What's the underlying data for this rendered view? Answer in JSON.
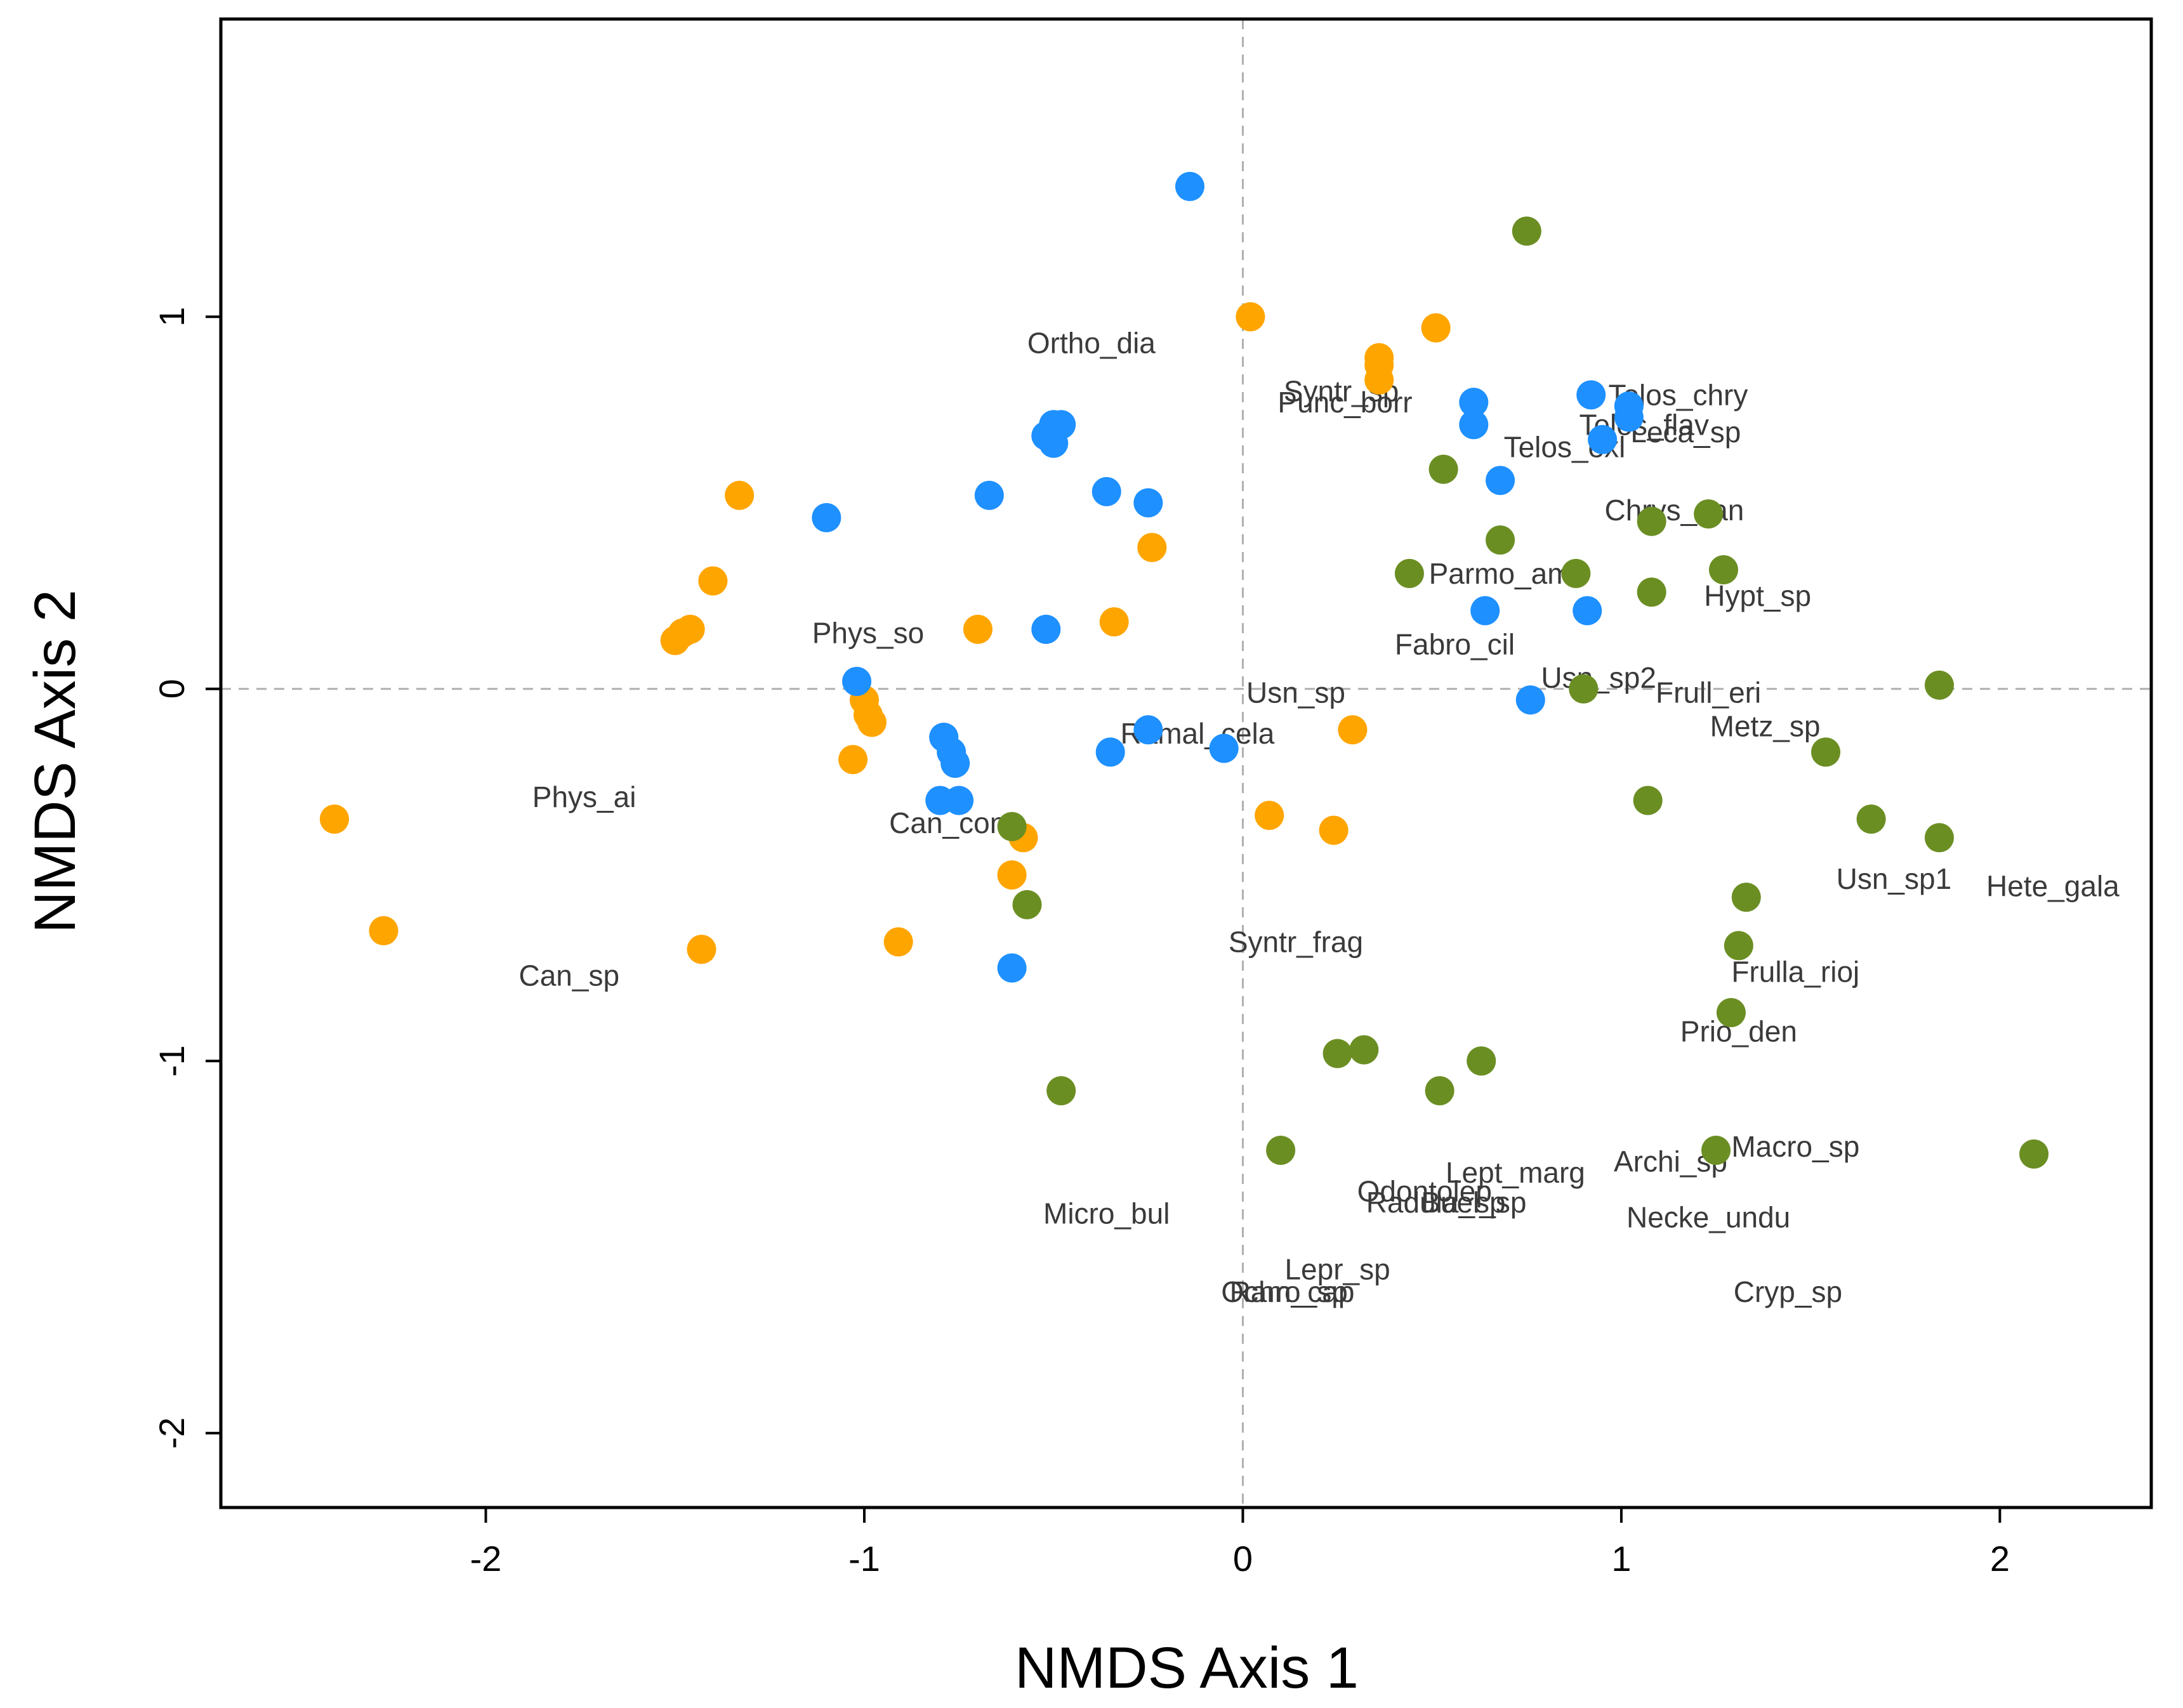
{
  "chart_data": {
    "type": "scatter",
    "title": "",
    "xlabel": "NMDS Axis 1",
    "ylabel": "NMDS Axis 2",
    "xlim": [
      -2.7,
      2.4
    ],
    "ylim": [
      -2.2,
      1.8
    ],
    "xticks": [
      -2,
      -1,
      0,
      1,
      2
    ],
    "yticks": [
      -2,
      -1,
      0,
      1
    ],
    "reference_lines": {
      "x": 0,
      "y": 0,
      "style": "dashed"
    },
    "colors": {
      "orange": "#FFA500",
      "blue": "#1E90FF",
      "green": "#6B8E23",
      "label": "#3a3a3a"
    },
    "series": [
      {
        "name": "orange",
        "color": "#FFA500",
        "points": [
          [
            -2.4,
            -0.35
          ],
          [
            -2.27,
            -0.65
          ],
          [
            -1.5,
            0.13
          ],
          [
            -1.48,
            0.15
          ],
          [
            -1.46,
            0.16
          ],
          [
            -1.4,
            0.29
          ],
          [
            -1.33,
            0.52
          ],
          [
            -1.43,
            -0.7
          ],
          [
            -1.03,
            -0.19
          ],
          [
            -1.0,
            -0.03
          ],
          [
            -0.99,
            -0.07
          ],
          [
            -0.98,
            -0.09
          ],
          [
            -0.91,
            -0.68
          ],
          [
            -0.7,
            0.16
          ],
          [
            -0.61,
            -0.5
          ],
          [
            -0.58,
            -0.4
          ],
          [
            -0.34,
            0.18
          ],
          [
            -0.24,
            0.38
          ],
          [
            0.02,
            1.0
          ],
          [
            0.36,
            0.83
          ],
          [
            0.36,
            0.87
          ],
          [
            0.36,
            0.89
          ],
          [
            0.51,
            0.97
          ],
          [
            0.07,
            -0.34
          ],
          [
            0.24,
            -0.38
          ],
          [
            0.29,
            -0.11
          ]
        ]
      },
      {
        "name": "blue",
        "color": "#1E90FF",
        "points": [
          [
            -1.1,
            0.46
          ],
          [
            -1.02,
            0.02
          ],
          [
            -0.79,
            -0.13
          ],
          [
            -0.77,
            -0.17
          ],
          [
            -0.76,
            -0.2
          ],
          [
            -0.8,
            -0.3
          ],
          [
            -0.75,
            -0.3
          ],
          [
            -0.67,
            0.52
          ],
          [
            -0.52,
            0.68
          ],
          [
            -0.5,
            0.66
          ],
          [
            -0.5,
            0.71
          ],
          [
            -0.48,
            0.71
          ],
          [
            -0.52,
            0.16
          ],
          [
            -0.61,
            -0.75
          ],
          [
            -0.36,
            0.53
          ],
          [
            -0.35,
            -0.17
          ],
          [
            -0.25,
            0.5
          ],
          [
            -0.25,
            -0.11
          ],
          [
            -0.05,
            -0.16
          ],
          [
            -0.14,
            1.35
          ],
          [
            0.61,
            0.77
          ],
          [
            0.61,
            0.71
          ],
          [
            0.64,
            0.21
          ],
          [
            0.68,
            0.56
          ],
          [
            0.76,
            -0.03
          ],
          [
            0.91,
            0.21
          ],
          [
            0.92,
            0.79
          ],
          [
            0.95,
            0.67
          ],
          [
            1.02,
            0.73
          ],
          [
            1.02,
            0.76
          ]
        ]
      },
      {
        "name": "green",
        "color": "#6B8E23",
        "points": [
          [
            -0.61,
            -0.37
          ],
          [
            -0.57,
            -0.58
          ],
          [
            -0.48,
            -1.08
          ],
          [
            0.1,
            -1.24
          ],
          [
            0.25,
            -0.98
          ],
          [
            0.32,
            -0.97
          ],
          [
            0.44,
            0.31
          ],
          [
            0.52,
            -1.08
          ],
          [
            0.53,
            0.59
          ],
          [
            0.63,
            -1.0
          ],
          [
            0.68,
            0.4
          ],
          [
            0.75,
            1.23
          ],
          [
            0.88,
            0.31
          ],
          [
            0.9,
            0.0
          ],
          [
            1.07,
            -0.3
          ],
          [
            1.08,
            0.26
          ],
          [
            1.08,
            0.45
          ],
          [
            1.23,
            0.47
          ],
          [
            1.25,
            -1.24
          ],
          [
            1.27,
            0.32
          ],
          [
            1.29,
            -0.87
          ],
          [
            1.31,
            -0.69
          ],
          [
            1.33,
            -0.56
          ],
          [
            1.54,
            -0.17
          ],
          [
            1.66,
            -0.35
          ],
          [
            1.84,
            -0.4
          ],
          [
            1.84,
            0.01
          ],
          [
            2.09,
            -1.25
          ]
        ]
      }
    ],
    "species_labels": [
      {
        "text": "Ortho_dia",
        "x": -0.4,
        "y": 0.93
      },
      {
        "text": "Syntr_sp",
        "x": 0.26,
        "y": 0.8
      },
      {
        "text": "Punc_borr",
        "x": 0.27,
        "y": 0.77
      },
      {
        "text": "Telos_chry",
        "x": 1.15,
        "y": 0.79
      },
      {
        "text": "Telos_flav",
        "x": 1.06,
        "y": 0.71
      },
      {
        "text": "Leca_sp",
        "x": 1.17,
        "y": 0.69
      },
      {
        "text": "Telos_exl",
        "x": 0.85,
        "y": 0.65
      },
      {
        "text": "Chrys_can",
        "x": 1.14,
        "y": 0.48
      },
      {
        "text": "Parmo_am",
        "x": 0.68,
        "y": 0.31
      },
      {
        "text": "Hypt_sp",
        "x": 1.36,
        "y": 0.25
      },
      {
        "text": "Phys_so",
        "x": -0.99,
        "y": 0.15
      },
      {
        "text": "Fabro_cil",
        "x": 0.56,
        "y": 0.12
      },
      {
        "text": "Usn_sp2",
        "x": 0.94,
        "y": 0.03
      },
      {
        "text": "Usn_sp",
        "x": 0.14,
        "y": -0.01
      },
      {
        "text": "Frull_eri",
        "x": 1.23,
        "y": -0.01
      },
      {
        "text": "Metz_sp",
        "x": 1.38,
        "y": -0.1
      },
      {
        "text": "Ramal_cela",
        "x": -0.12,
        "y": -0.12
      },
      {
        "text": "Phys_ai",
        "x": -1.74,
        "y": -0.29
      },
      {
        "text": "Can_con",
        "x": -0.78,
        "y": -0.36
      },
      {
        "text": "Usn_sp1",
        "x": 1.72,
        "y": -0.51
      },
      {
        "text": "Hete_gala",
        "x": 2.14,
        "y": -0.53
      },
      {
        "text": "Syntr_frag",
        "x": 0.14,
        "y": -0.68
      },
      {
        "text": "Can_sp",
        "x": -1.78,
        "y": -0.77
      },
      {
        "text": "Frulla_rioj",
        "x": 1.46,
        "y": -0.76
      },
      {
        "text": "Prio_den",
        "x": 1.31,
        "y": -0.92
      },
      {
        "text": "Macro_sp",
        "x": 1.46,
        "y": -1.23
      },
      {
        "text": "Archi_sp",
        "x": 1.13,
        "y": -1.27
      },
      {
        "text": "Lept_marg",
        "x": 0.72,
        "y": -1.3
      },
      {
        "text": "Odontolep",
        "x": 0.48,
        "y": -1.35
      },
      {
        "text": "Radula_sp",
        "x": 0.51,
        "y": -1.38
      },
      {
        "text": "Buel_sp",
        "x": 0.61,
        "y": -1.38
      },
      {
        "text": "Necke_undu",
        "x": 1.23,
        "y": -1.42
      },
      {
        "text": "Micro_bul",
        "x": -0.36,
        "y": -1.41
      },
      {
        "text": "Lepr_sp",
        "x": 0.25,
        "y": -1.56
      },
      {
        "text": "Cryp_sp",
        "x": 1.44,
        "y": -1.62
      },
      {
        "text": "Ochro_sp",
        "x": 0.11,
        "y": -1.62
      },
      {
        "text": "Ram_cap",
        "x": 0.13,
        "y": -1.62
      }
    ]
  }
}
